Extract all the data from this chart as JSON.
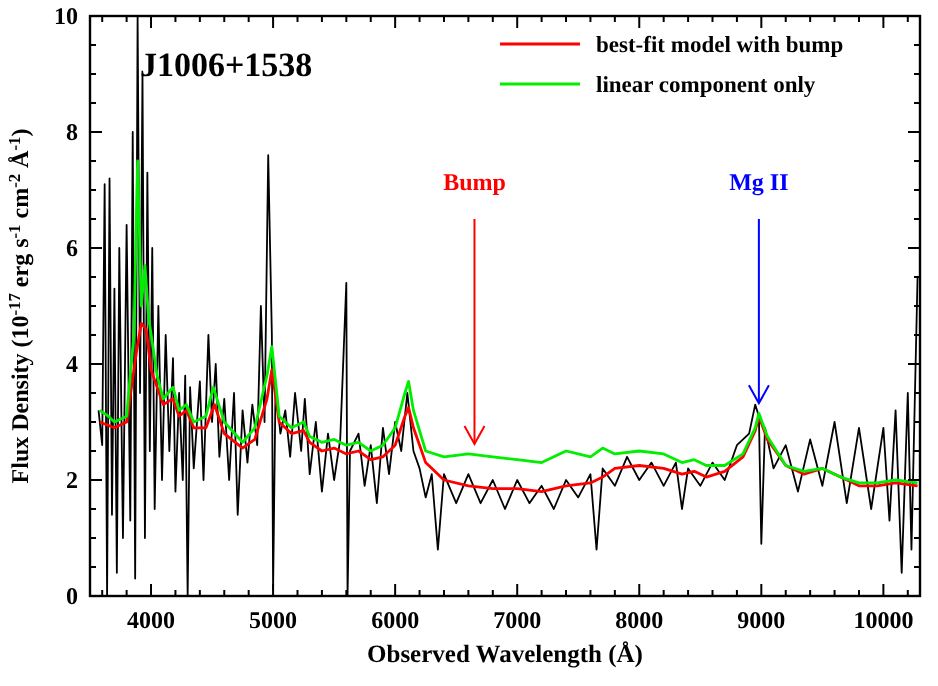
{
  "chart_data": {
    "type": "line",
    "title": "J1006+1538",
    "xlabel": "Observed Wavelength (Å)",
    "ylabel": "Flux Density (10$^{-17}$ erg s$^{-1}$ cm$^{-2}$ Å$^{-1}$)",
    "xlim": [
      3500,
      10300
    ],
    "ylim": [
      0,
      10
    ],
    "xticks": [
      4000,
      {
        "value": 4200,
        "label": null
      },
      {
        "value": 4400,
        "label": null
      },
      {
        "value": 4600,
        "label": null
      },
      {
        "value": 4800,
        "label": null
      },
      5000,
      {
        "value": 5200,
        "label": null
      },
      {
        "value": 5400,
        "label": null
      },
      {
        "value": 5600,
        "label": null
      },
      {
        "value": 5800,
        "label": null
      },
      6000,
      {
        "value": 6200,
        "label": null
      },
      {
        "value": 6400,
        "label": null
      },
      {
        "value": 6600,
        "label": null
      },
      {
        "value": 6800,
        "label": null
      },
      7000,
      {
        "value": 7200,
        "label": null
      },
      {
        "value": 7400,
        "label": null
      },
      {
        "value": 7600,
        "label": null
      },
      {
        "value": 7800,
        "label": null
      },
      8000,
      {
        "value": 8200,
        "label": null
      },
      {
        "value": 8400,
        "label": null
      },
      {
        "value": 8600,
        "label": null
      },
      {
        "value": 8800,
        "label": null
      },
      9000,
      {
        "value": 9200,
        "label": null
      },
      {
        "value": 9400,
        "label": null
      },
      {
        "value": 9600,
        "label": null
      },
      {
        "value": 9800,
        "label": null
      },
      10000,
      {
        "value": 10200,
        "label": null
      },
      {
        "value": 3600,
        "label": null
      },
      {
        "value": 3800,
        "label": null
      }
    ],
    "yticks": [
      0,
      {
        "value": 0.5,
        "label": null
      },
      {
        "value": 1,
        "label": null
      },
      {
        "value": 1.5,
        "label": null
      },
      2,
      {
        "value": 2.5,
        "label": null
      },
      {
        "value": 3,
        "label": null
      },
      {
        "value": 3.5,
        "label": null
      },
      4,
      {
        "value": 4.5,
        "label": null
      },
      {
        "value": 5,
        "label": null
      },
      {
        "value": 5.5,
        "label": null
      },
      6,
      {
        "value": 6.5,
        "label": null
      },
      {
        "value": 7,
        "label": null
      },
      {
        "value": 7.5,
        "label": null
      },
      8,
      {
        "value": 8.5,
        "label": null
      },
      {
        "value": 9,
        "label": null
      },
      {
        "value": 9.5,
        "label": null
      },
      10
    ],
    "grid": false,
    "legend": "top right",
    "marker": "none",
    "line_style": "solid",
    "annotations": [
      {
        "text": "Bump",
        "x": 6650,
        "y": 2.45
      },
      {
        "text": "Mg II",
        "x": 8980,
        "y": 3.15
      }
    ],
    "series": [
      {
        "color": "#000000",
        "x": [
          3570,
          3600,
          3620,
          3640,
          3660,
          3680,
          3700,
          3720,
          3740,
          3770,
          3800,
          3830,
          3850,
          3870,
          3890,
          3910,
          3930,
          3950,
          3970,
          3990,
          4010,
          4030,
          4060,
          4090,
          4120,
          4150,
          4180,
          4200,
          4230,
          4260,
          4280,
          4300,
          4320,
          4350,
          4400,
          4430,
          4470,
          4500,
          4530,
          4560,
          4600,
          4640,
          4680,
          4710,
          4750,
          4790,
          4830,
          4870,
          4900,
          4930,
          4960,
          4990,
          5000,
          5020,
          5060,
          5100,
          5140,
          5180,
          5230,
          5260,
          5300,
          5350,
          5400,
          5450,
          5500,
          5550,
          5600,
          5610,
          5630,
          5700,
          5750,
          5800,
          5850,
          5900,
          5950,
          6000,
          6050,
          6100,
          6150,
          6200,
          6250,
          6300,
          6350,
          6400,
          6500,
          6600,
          6700,
          6800,
          6900,
          7000,
          7100,
          7200,
          7300,
          7400,
          7500,
          7600,
          7650,
          7700,
          7800,
          7900,
          8000,
          8100,
          8200,
          8300,
          8350,
          8400,
          8500,
          8600,
          8700,
          8800,
          8900,
          8950,
          8980,
          9000,
          9030,
          9100,
          9200,
          9300,
          9400,
          9500,
          9600,
          9700,
          9800,
          9900,
          10000,
          10050,
          10100,
          10150,
          10200,
          10230,
          10280
        ],
        "values": [
          3.2,
          2.6,
          7.1,
          0,
          7.2,
          1.4,
          5.3,
          0.4,
          6.0,
          1.0,
          6.4,
          1.3,
          8.0,
          0.3,
          10,
          3.5,
          9.0,
          1.0,
          7.3,
          2.5,
          6.0,
          1.5,
          5.0,
          2.0,
          4.5,
          2.5,
          4.1,
          1.8,
          3.5,
          2.0,
          3.8,
          0,
          3.6,
          2.2,
          3.7,
          2.0,
          4.5,
          3.0,
          4.0,
          2.4,
          3.4,
          2.0,
          3.5,
          1.4,
          3.2,
          2.3,
          3.3,
          2.6,
          5.0,
          3.0,
          7.6,
          4.5,
          0.1,
          3.6,
          2.8,
          3.2,
          2.4,
          3.5,
          2.5,
          3.4,
          2.1,
          3.0,
          1.8,
          2.8,
          2.0,
          2.7,
          5.4,
          0,
          2.5,
          2.8,
          1.9,
          2.6,
          1.6,
          2.9,
          2.1,
          3.0,
          2.5,
          3.5,
          2.5,
          2.2,
          1.7,
          2.1,
          0.8,
          2.1,
          1.6,
          2.1,
          1.6,
          2.0,
          1.5,
          2.0,
          1.6,
          1.9,
          1.5,
          2.0,
          1.7,
          2.1,
          0.8,
          2.2,
          1.9,
          2.4,
          2.0,
          2.3,
          1.9,
          2.3,
          1.5,
          2.2,
          1.9,
          2.3,
          2.0,
          2.6,
          2.8,
          3.3,
          3.1,
          0.9,
          2.9,
          2.2,
          2.6,
          1.8,
          2.7,
          1.9,
          3.0,
          1.6,
          2.9,
          1.5,
          2.9,
          1.3,
          3.2,
          0.4,
          3.5,
          0.8,
          5.5
        ]
      },
      {
        "name": "best-fit model with bump",
        "color": "#ff0000",
        "x": [
          3580,
          3700,
          3800,
          3880,
          3920,
          3960,
          4000,
          4100,
          4180,
          4230,
          4290,
          4350,
          4450,
          4520,
          4600,
          4750,
          4850,
          4950,
          4990,
          5050,
          5150,
          5250,
          5300,
          5400,
          5500,
          5600,
          5700,
          5800,
          5900,
          6000,
          6080,
          6110,
          6150,
          6250,
          6400,
          6600,
          6800,
          7000,
          7200,
          7400,
          7600,
          7700,
          7800,
          8000,
          8200,
          8350,
          8450,
          8550,
          8700,
          8850,
          8950,
          8980,
          9050,
          9200,
          9350,
          9500,
          9650,
          9800,
          9950,
          10100,
          10280
        ],
        "values": [
          3.0,
          2.9,
          3.0,
          4.2,
          4.7,
          4.6,
          3.9,
          3.3,
          3.4,
          3.1,
          3.2,
          2.9,
          2.9,
          3.3,
          2.8,
          2.55,
          2.7,
          3.4,
          3.9,
          3.0,
          2.8,
          2.85,
          2.65,
          2.5,
          2.55,
          2.45,
          2.5,
          2.35,
          2.4,
          2.6,
          3.1,
          3.25,
          2.9,
          2.3,
          2.0,
          1.9,
          1.85,
          1.85,
          1.8,
          1.9,
          1.95,
          2.05,
          2.2,
          2.25,
          2.2,
          2.1,
          2.15,
          2.05,
          2.15,
          2.4,
          2.85,
          3.1,
          2.7,
          2.25,
          2.1,
          2.2,
          2.05,
          1.9,
          1.9,
          1.95,
          1.9
        ]
      },
      {
        "name": "linear component only",
        "color": "#00ee00",
        "x": [
          3580,
          3650,
          3700,
          3800,
          3860,
          3890,
          3920,
          3950,
          3980,
          4050,
          4100,
          4180,
          4230,
          4290,
          4350,
          4450,
          4510,
          4600,
          4750,
          4850,
          4950,
          4990,
          5050,
          5150,
          5250,
          5300,
          5400,
          5500,
          5600,
          5700,
          5800,
          5900,
          6000,
          6080,
          6110,
          6150,
          6250,
          6400,
          6600,
          6800,
          7000,
          7200,
          7400,
          7500,
          7600,
          7700,
          7800,
          8000,
          8200,
          8350,
          8450,
          8550,
          8700,
          8850,
          8950,
          8980,
          9050,
          9200,
          9350,
          9500,
          9650,
          9800,
          9950,
          10100,
          10280
        ],
        "values": [
          3.2,
          3.1,
          3.0,
          3.1,
          4.5,
          7.5,
          5.0,
          5.7,
          4.8,
          3.8,
          3.4,
          3.6,
          3.2,
          3.3,
          3.0,
          3.1,
          3.6,
          3.0,
          2.65,
          2.9,
          3.8,
          4.3,
          3.1,
          2.9,
          3.0,
          2.75,
          2.65,
          2.7,
          2.6,
          2.65,
          2.5,
          2.6,
          2.9,
          3.5,
          3.7,
          3.2,
          2.5,
          2.4,
          2.45,
          2.4,
          2.35,
          2.3,
          2.5,
          2.45,
          2.4,
          2.55,
          2.45,
          2.5,
          2.45,
          2.3,
          2.35,
          2.25,
          2.25,
          2.45,
          2.9,
          3.15,
          2.75,
          2.25,
          2.15,
          2.2,
          2.05,
          1.95,
          1.95,
          2.0,
          1.95
        ]
      }
    ]
  }
}
